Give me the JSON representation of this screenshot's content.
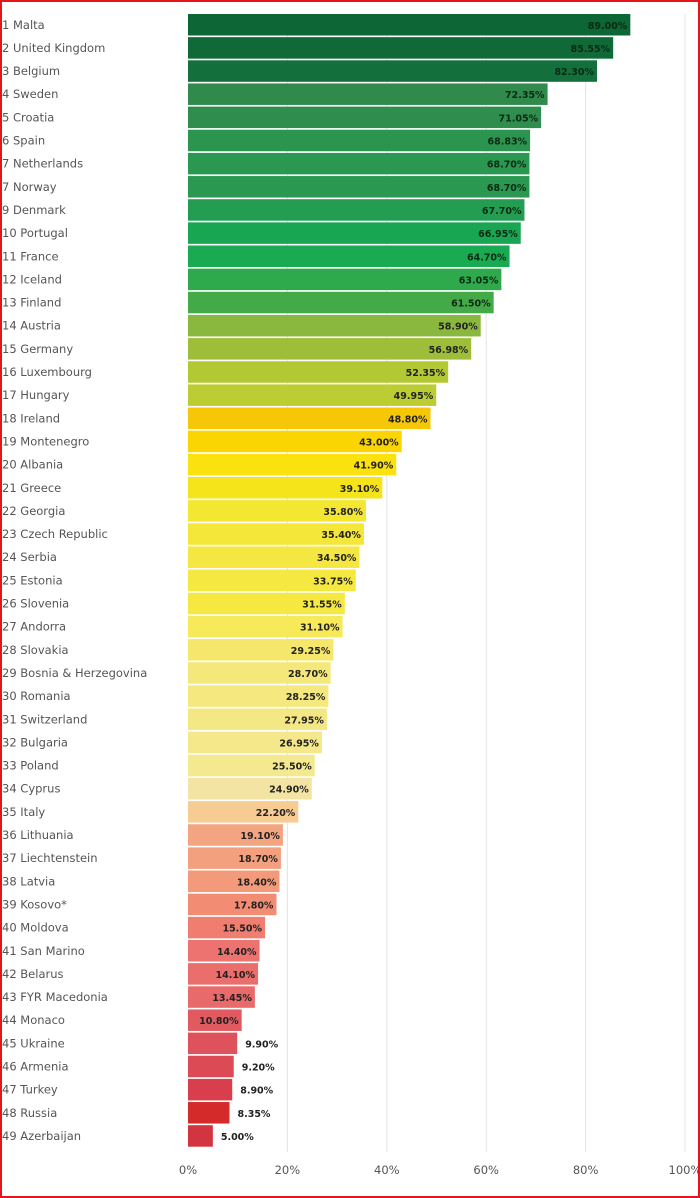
{
  "chart_data": {
    "type": "bar",
    "orientation": "horizontal",
    "title": "",
    "xlabel": "",
    "ylabel": "",
    "xlim": [
      0,
      100
    ],
    "grid": true,
    "x_ticks": [
      "0%",
      "20%",
      "40%",
      "60%",
      "80%",
      "100%"
    ],
    "categories": [
      "1 Malta",
      "2 United Kingdom",
      "3 Belgium",
      "4 Sweden",
      "5 Croatia",
      "6 Spain",
      "7 Netherlands",
      "7 Norway",
      "9 Denmark",
      "10 Portugal",
      "11 France",
      "12 Iceland",
      "13 Finland",
      "14 Austria",
      "15 Germany",
      "16 Luxembourg",
      "17 Hungary",
      "18 Ireland",
      "19 Montenegro",
      "20 Albania",
      "21 Greece",
      "22 Georgia",
      "23 Czech Republic",
      "24 Serbia",
      "25 Estonia",
      "26 Slovenia",
      "27 Andorra",
      "28 Slovakia",
      "29 Bosnia & Herzegovina",
      "30 Romania",
      "31 Switzerland",
      "32 Bulgaria",
      "33 Poland",
      "34 Cyprus",
      "35 Italy",
      "36 Lithuania",
      "37 Liechtenstein",
      "38 Latvia",
      "39 Kosovo*",
      "40 Moldova",
      "41 San Marino",
      "42 Belarus",
      "43 FYR Macedonia",
      "44 Monaco",
      "45 Ukraine",
      "46 Armenia",
      "47 Turkey",
      "48 Russia",
      "49 Azerbaijan"
    ],
    "values": [
      89.0,
      85.55,
      82.3,
      72.35,
      71.05,
      68.83,
      68.7,
      68.7,
      67.7,
      66.95,
      64.7,
      63.05,
      61.5,
      58.9,
      56.98,
      52.35,
      49.95,
      48.8,
      43.0,
      41.9,
      39.1,
      35.8,
      35.4,
      34.5,
      33.75,
      31.55,
      31.1,
      29.25,
      28.7,
      28.25,
      27.95,
      26.95,
      25.5,
      24.9,
      22.2,
      19.1,
      18.7,
      18.4,
      17.8,
      15.5,
      14.4,
      14.1,
      13.45,
      10.8,
      9.9,
      9.2,
      8.9,
      8.35,
      5.0
    ],
    "value_labels": [
      "89.00%",
      "85.55%",
      "82.30%",
      "72.35%",
      "71.05%",
      "68.83%",
      "68.70%",
      "68.70%",
      "67.70%",
      "66.95%",
      "64.70%",
      "63.05%",
      "61.50%",
      "58.90%",
      "56.98%",
      "52.35%",
      "49.95%",
      "48.80%",
      "43.00%",
      "41.90%",
      "39.10%",
      "35.80%",
      "35.40%",
      "34.50%",
      "33.75%",
      "31.55%",
      "31.10%",
      "29.25%",
      "28.70%",
      "28.25%",
      "27.95%",
      "26.95%",
      "25.50%",
      "24.90%",
      "22.20%",
      "19.10%",
      "18.70%",
      "18.40%",
      "17.80%",
      "15.50%",
      "14.40%",
      "14.10%",
      "13.45%",
      "10.80%",
      "9.90%",
      "9.20%",
      "8.90%",
      "8.35%",
      "5.00%"
    ],
    "colors": [
      "#0d6635",
      "#0f6a38",
      "#13703c",
      "#2f8a4c",
      "#2f8d4d",
      "#2b9550",
      "#2a9851",
      "#2a9851",
      "#239d51",
      "#18a653",
      "#1aaa52",
      "#2eaa4c",
      "#44aa48",
      "#8ab83e",
      "#9ebe39",
      "#b2c934",
      "#bccd33",
      "#f6c708",
      "#fad502",
      "#fbe10e",
      "#f6e41b",
      "#f4e732",
      "#f4e73a",
      "#f5e741",
      "#f5e840",
      "#f5e841",
      "#f6e95a",
      "#f5e76c",
      "#f4e87b",
      "#f4e87e",
      "#f4e885",
      "#f4e88a",
      "#f4e98f",
      "#f3e4a3",
      "#f7cc92",
      "#f3a480",
      "#f3a07e",
      "#f39a7a",
      "#f28d74",
      "#ef7d70",
      "#ec7370",
      "#ea6e6c",
      "#e86a6a",
      "#e05a60",
      "#de535b",
      "#db4a55",
      "#d83e4b",
      "#d42a2a",
      "#d2353f"
    ]
  }
}
